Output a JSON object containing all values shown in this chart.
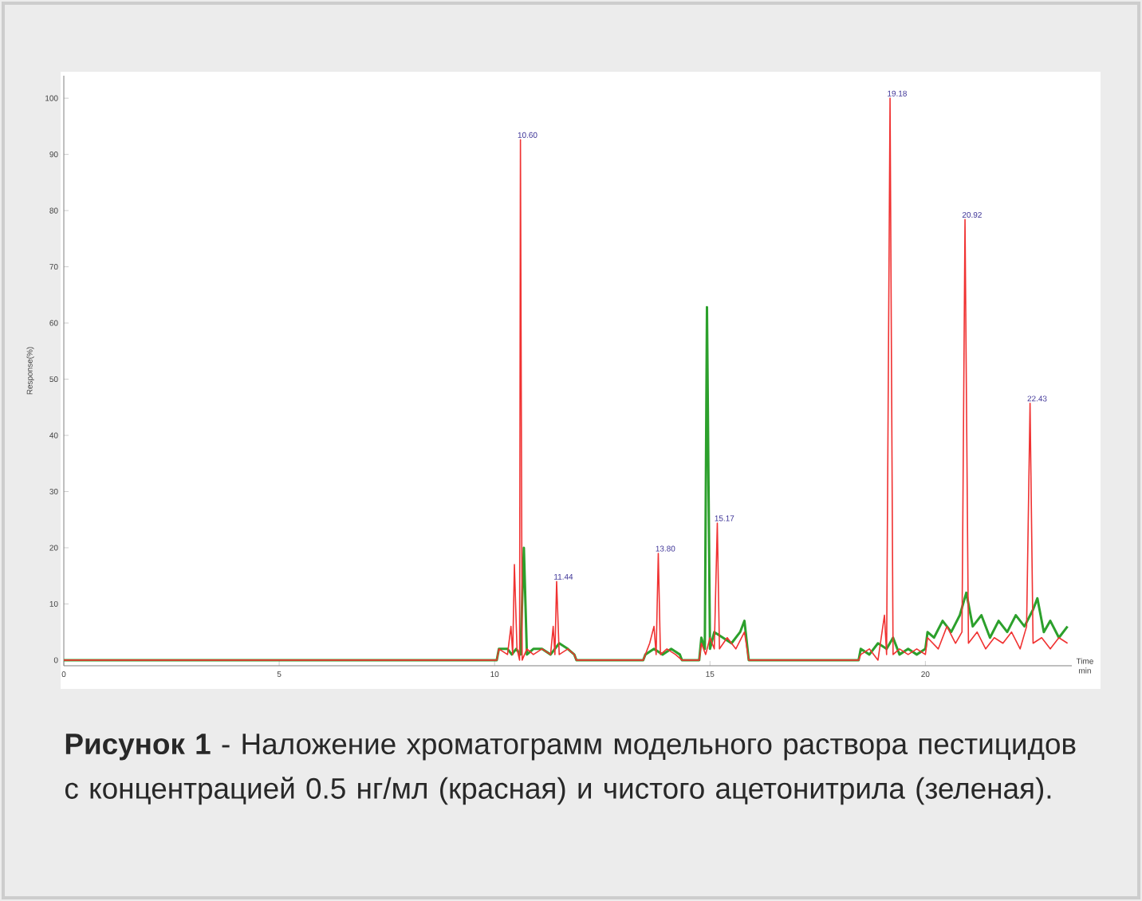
{
  "chart_data": {
    "type": "line",
    "xlabel": "Time min",
    "ylabel": "Response(%)",
    "xlim": [
      0,
      23.4
    ],
    "ylim": [
      -1,
      104
    ],
    "xticks": [
      0,
      5,
      10,
      15,
      20
    ],
    "yticks": [
      0,
      10,
      20,
      30,
      40,
      50,
      60,
      70,
      80,
      90,
      100
    ],
    "series": [
      {
        "color": "#2ca02c",
        "x": [
          0,
          10.05,
          10.1,
          10.3,
          10.4,
          10.5,
          10.6,
          10.68,
          10.75,
          10.9,
          11.1,
          11.3,
          11.5,
          11.7,
          11.85,
          11.9,
          13.45,
          13.5,
          13.7,
          13.9,
          14.1,
          14.3,
          14.35,
          14.75,
          14.8,
          14.88,
          14.93,
          15.0,
          15.1,
          15.3,
          15.5,
          15.7,
          15.8,
          15.9,
          18.45,
          18.5,
          18.7,
          18.9,
          19.1,
          19.25,
          19.4,
          19.6,
          19.8,
          20.0,
          20.05,
          20.2,
          20.4,
          20.6,
          20.8,
          20.95,
          21.1,
          21.3,
          21.5,
          21.7,
          21.9,
          22.1,
          22.3,
          22.5,
          22.6,
          22.75,
          22.9,
          23.1,
          23.3
        ],
        "values": [
          0,
          0,
          2,
          2,
          1,
          2,
          1,
          20,
          1,
          2,
          2,
          1,
          3,
          2,
          1,
          0,
          0,
          1,
          2,
          1,
          2,
          1,
          0,
          0,
          4,
          2,
          62.8,
          2,
          5,
          4,
          3,
          5,
          7,
          0,
          0,
          2,
          1,
          3,
          2,
          4,
          1,
          2,
          1,
          2,
          5,
          4,
          7,
          5,
          8,
          12,
          6,
          8,
          4,
          7,
          5,
          8,
          6,
          9,
          11,
          5,
          7,
          4,
          6
        ]
      },
      {
        "color": "#f03232",
        "x": [
          0,
          10.05,
          10.1,
          10.3,
          10.38,
          10.42,
          10.46,
          10.52,
          10.58,
          10.6,
          10.64,
          10.75,
          10.9,
          11.1,
          11.3,
          11.36,
          11.4,
          11.44,
          11.5,
          11.7,
          11.85,
          11.9,
          13.45,
          13.5,
          13.6,
          13.7,
          13.75,
          13.8,
          13.85,
          14.0,
          14.2,
          14.35,
          14.75,
          14.8,
          14.9,
          15.0,
          15.1,
          15.17,
          15.22,
          15.4,
          15.6,
          15.8,
          15.9,
          18.45,
          18.5,
          18.7,
          18.9,
          19.05,
          19.1,
          19.18,
          19.25,
          19.4,
          19.6,
          19.8,
          20.0,
          20.05,
          20.3,
          20.5,
          20.7,
          20.85,
          20.92,
          21.0,
          21.2,
          21.4,
          21.6,
          21.8,
          22.0,
          22.2,
          22.35,
          22.43,
          22.5,
          22.7,
          22.9,
          23.1,
          23.3
        ],
        "values": [
          0,
          0,
          2,
          1,
          6,
          1,
          17,
          2,
          0,
          92.6,
          0,
          2,
          1,
          2,
          1,
          6,
          1,
          14,
          1,
          2,
          1,
          0,
          0,
          1,
          3,
          6,
          1,
          19,
          1,
          2,
          1,
          0,
          0,
          3,
          1,
          4,
          2,
          24.4,
          2,
          4,
          2,
          5,
          0,
          0,
          1,
          2,
          0,
          8,
          1,
          100,
          1,
          2,
          1,
          2,
          1,
          4,
          2,
          6,
          3,
          5,
          78.4,
          3,
          5,
          2,
          4,
          3,
          5,
          2,
          6,
          45.7,
          3,
          4,
          2,
          4,
          3
        ]
      }
    ],
    "annotations": [
      {
        "text": "10.60",
        "x": 10.6,
        "y": 92.6
      },
      {
        "text": "11.44",
        "x": 11.44,
        "y": 14
      },
      {
        "text": "13.80",
        "x": 13.8,
        "y": 19
      },
      {
        "text": "15.17",
        "x": 15.17,
        "y": 24.4
      },
      {
        "text": "19.18",
        "x": 19.18,
        "y": 100
      },
      {
        "text": "20.92",
        "x": 20.92,
        "y": 78.4
      },
      {
        "text": "22.43",
        "x": 22.43,
        "y": 45.7
      },
      "**Рисунок 1** - Наложение хроматограмм модельного раствора пестицидов с концентрацией 0.5 нг/мл (красная) и чистого ацетонитрила (зеленая)."
    ]
  }
}
